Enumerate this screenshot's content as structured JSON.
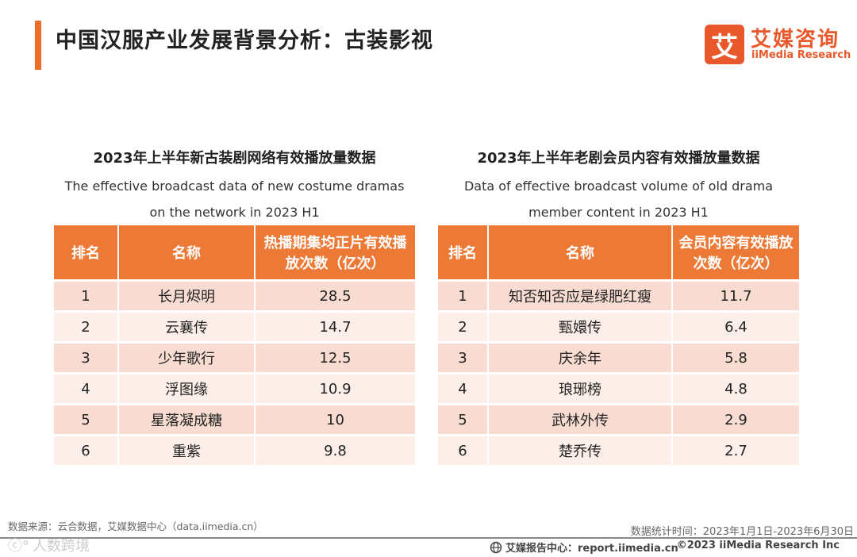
{
  "header": {
    "title": "中国汉服产业发展背景分析：古装影视",
    "accent_color": "#ec6d2b",
    "logo": {
      "mark": "艾",
      "name_cn": "艾媒咨询",
      "name_en": "iiMedia Research"
    }
  },
  "left_table": {
    "title": "2023年上半年新古装剧网络有效播放量数据",
    "subtitle_line1": "The effective broadcast data of new costume dramas",
    "subtitle_line2": "on the network in 2023 H1",
    "headers": {
      "rank": "排名",
      "name": "名称",
      "value": "热播期集均正片有效播放次数（亿次）"
    },
    "rows": [
      {
        "rank": "1",
        "name": "长月烬明",
        "value": "28.5"
      },
      {
        "rank": "2",
        "name": "云襄传",
        "value": "14.7"
      },
      {
        "rank": "3",
        "name": "少年歌行",
        "value": "12.5"
      },
      {
        "rank": "4",
        "name": "浮图缘",
        "value": "10.9"
      },
      {
        "rank": "5",
        "name": "星落凝成糖",
        "value": "10"
      },
      {
        "rank": "6",
        "name": "重紫",
        "value": "9.8"
      }
    ]
  },
  "right_table": {
    "title": "2023年上半年老剧会员内容有效播放量数据",
    "subtitle_line1": "Data of effective broadcast volume of old drama",
    "subtitle_line2": "member content in 2023 H1",
    "headers": {
      "rank": "排名",
      "name": "名称",
      "value": "会员内容有效播放次数（亿次）"
    },
    "rows": [
      {
        "rank": "1",
        "name": "知否知否应是绿肥红瘦",
        "value": "11.7"
      },
      {
        "rank": "2",
        "name": "甄嬛传",
        "value": "6.4"
      },
      {
        "rank": "3",
        "name": "庆余年",
        "value": "5.8"
      },
      {
        "rank": "4",
        "name": "琅琊榜",
        "value": "4.8"
      },
      {
        "rank": "5",
        "name": "武林外传",
        "value": "2.9"
      },
      {
        "rank": "6",
        "name": "楚乔传",
        "value": "2.7"
      }
    ]
  },
  "footer": {
    "source": "数据来源：云合数据，艾媒数据中心（data.iimedia.cn）",
    "date_range": "数据统计时间：2023年1月1日-2023年6月30日",
    "report_center": "艾媒报告中心：report.iimedia.cn",
    "copyright": "©2023 iiMedia Research Inc",
    "watermark": "人数跨境"
  }
}
